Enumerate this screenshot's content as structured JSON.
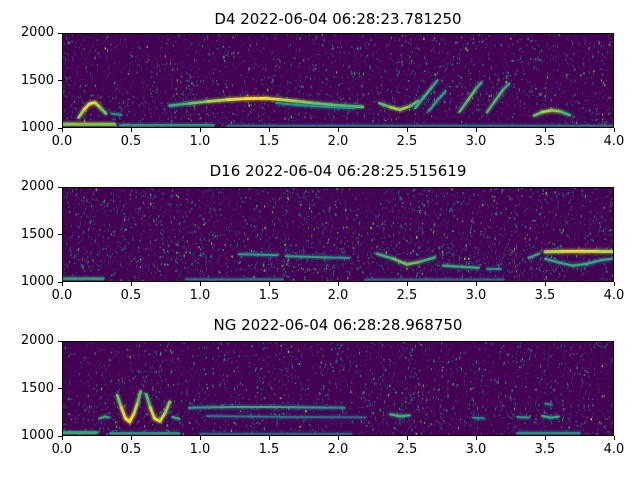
{
  "figure": {
    "background_color": "#ffffff",
    "description": "Three stacked spectrogram subplots",
    "subplot_count": 3
  },
  "chart_data": [
    {
      "type": "heatmap",
      "subtype": "spectrogram",
      "title": "D4 2022-06-04 06:28:23.781250",
      "xlabel": "",
      "ylabel": "",
      "xlim": [
        0.0,
        4.0
      ],
      "ylim": [
        1000,
        2000
      ],
      "xticks": [
        0.0,
        0.5,
        1.0,
        1.5,
        2.0,
        2.5,
        3.0,
        3.5,
        4.0
      ],
      "xtick_labels": [
        "0.0",
        "0.5",
        "1.0",
        "1.5",
        "2.0",
        "2.5",
        "3.0",
        "3.5",
        "4.0"
      ],
      "yticks": [
        2000,
        1500,
        1000
      ],
      "ytick_labels": [
        "2000",
        "1500",
        "1000"
      ],
      "colormap": "viridis",
      "background_color": "#440154",
      "grid": false,
      "noise_seed": 7,
      "noise_count": 3800,
      "noise_band": {
        "f0": 1100,
        "f1": 1380,
        "count": 500
      },
      "noise_palette": [
        {
          "color": "#482475",
          "weight": 0.4,
          "alpha": 0.55
        },
        {
          "color": "#414487",
          "weight": 0.2,
          "alpha": 0.5
        },
        {
          "color": "#2a788e",
          "weight": 0.2,
          "alpha": 0.75
        },
        {
          "color": "#22a884",
          "weight": 0.13,
          "alpha": 0.8
        },
        {
          "color": "#54c568",
          "weight": 0.05,
          "alpha": 0.85
        },
        {
          "color": "#a5db36",
          "weight": 0.02,
          "alpha": 0.9
        }
      ],
      "bands": [
        {
          "t0": 0.0,
          "t1": 0.38,
          "f": 1040,
          "intensity": 0.78,
          "lw": 3.2
        },
        {
          "t0": 0.42,
          "t1": 1.1,
          "f": 1030,
          "intensity": 0.5,
          "lw": 2.4
        },
        {
          "t0": 1.2,
          "t1": 4.0,
          "f": 1024,
          "intensity": 0.34,
          "lw": 2.0
        }
      ],
      "contours": [
        {
          "lw": 2.6,
          "points": [
            [
              0.12,
              1110,
              0.72
            ],
            [
              0.16,
              1195,
              0.9
            ],
            [
              0.2,
              1255,
              1.0
            ],
            [
              0.24,
              1268,
              0.95
            ],
            [
              0.28,
              1210,
              0.8
            ],
            [
              0.32,
              1150,
              0.62
            ]
          ]
        },
        {
          "lw": 2.0,
          "points": [
            [
              0.36,
              1150,
              0.45
            ],
            [
              0.43,
              1138,
              0.4
            ]
          ]
        },
        {
          "lw": 2.6,
          "points": [
            [
              0.78,
              1235,
              0.5
            ],
            [
              0.92,
              1258,
              0.65
            ],
            [
              1.06,
              1280,
              0.78
            ],
            [
              1.2,
              1298,
              0.9
            ],
            [
              1.34,
              1310,
              1.0
            ],
            [
              1.48,
              1312,
              1.0
            ],
            [
              1.58,
              1300,
              0.9
            ],
            [
              1.7,
              1282,
              0.82
            ],
            [
              1.82,
              1262,
              0.75
            ],
            [
              1.94,
              1245,
              0.7
            ],
            [
              2.06,
              1232,
              0.72
            ],
            [
              2.18,
              1222,
              0.65
            ]
          ]
        },
        {
          "lw": 1.9,
          "points": [
            [
              1.55,
              1262,
              0.42
            ],
            [
              1.7,
              1243,
              0.48
            ],
            [
              1.85,
              1228,
              0.46
            ],
            [
              2.0,
              1215,
              0.44
            ],
            [
              2.12,
              1208,
              0.4
            ]
          ]
        },
        {
          "lw": 2.4,
          "points": [
            [
              2.3,
              1262,
              0.6
            ],
            [
              2.38,
              1218,
              0.78
            ],
            [
              2.45,
              1192,
              0.85
            ],
            [
              2.52,
              1228,
              0.75
            ],
            [
              2.58,
              1285,
              0.6
            ]
          ]
        },
        {
          "lw": 2.2,
          "points": [
            [
              2.56,
              1210,
              0.55
            ],
            [
              2.62,
              1320,
              0.65
            ],
            [
              2.68,
              1430,
              0.6
            ],
            [
              2.72,
              1500,
              0.48
            ]
          ]
        },
        {
          "lw": 2.0,
          "points": [
            [
              2.66,
              1180,
              0.48
            ],
            [
              2.72,
              1290,
              0.55
            ],
            [
              2.78,
              1390,
              0.48
            ]
          ]
        },
        {
          "lw": 2.2,
          "points": [
            [
              2.88,
              1170,
              0.6
            ],
            [
              2.94,
              1290,
              0.72
            ],
            [
              3.0,
              1415,
              0.65
            ],
            [
              3.04,
              1480,
              0.5
            ]
          ]
        },
        {
          "lw": 2.2,
          "points": [
            [
              3.08,
              1165,
              0.6
            ],
            [
              3.14,
              1290,
              0.7
            ],
            [
              3.2,
              1410,
              0.62
            ],
            [
              3.24,
              1465,
              0.5
            ]
          ]
        },
        {
          "lw": 2.4,
          "points": [
            [
              3.42,
              1130,
              0.6
            ],
            [
              3.48,
              1168,
              0.82
            ],
            [
              3.55,
              1188,
              0.85
            ],
            [
              3.62,
              1170,
              0.7
            ],
            [
              3.68,
              1135,
              0.55
            ]
          ]
        }
      ]
    },
    {
      "type": "heatmap",
      "subtype": "spectrogram",
      "title": "D16 2022-06-04 06:28:25.515619",
      "xlabel": "",
      "ylabel": "",
      "xlim": [
        0.0,
        4.0
      ],
      "ylim": [
        1000,
        2000
      ],
      "xticks": [
        0.0,
        0.5,
        1.0,
        1.5,
        2.0,
        2.5,
        3.0,
        3.5,
        4.0
      ],
      "xtick_labels": [
        "0.0",
        "0.5",
        "1.0",
        "1.5",
        "2.0",
        "2.5",
        "3.0",
        "3.5",
        "4.0"
      ],
      "yticks": [
        2000,
        1500,
        1000
      ],
      "ytick_labels": [
        "2000",
        "1500",
        "1000"
      ],
      "colormap": "viridis",
      "background_color": "#440154",
      "grid": false,
      "noise_seed": 13,
      "noise_count": 4600,
      "noise_band": {
        "f0": 1120,
        "f1": 1380,
        "count": 800
      },
      "noise_palette": [
        {
          "color": "#482475",
          "weight": 0.4,
          "alpha": 0.55
        },
        {
          "color": "#414487",
          "weight": 0.2,
          "alpha": 0.5
        },
        {
          "color": "#2a788e",
          "weight": 0.2,
          "alpha": 0.75
        },
        {
          "color": "#22a884",
          "weight": 0.13,
          "alpha": 0.8
        },
        {
          "color": "#54c568",
          "weight": 0.05,
          "alpha": 0.85
        },
        {
          "color": "#a5db36",
          "weight": 0.02,
          "alpha": 0.9
        }
      ],
      "bands": [
        {
          "t0": 0.0,
          "t1": 0.3,
          "f": 1035,
          "intensity": 0.55,
          "lw": 2.5
        },
        {
          "t0": 0.9,
          "t1": 1.6,
          "f": 1028,
          "intensity": 0.35,
          "lw": 2.0
        },
        {
          "t0": 2.2,
          "t1": 3.2,
          "f": 1025,
          "intensity": 0.3,
          "lw": 2.0
        }
      ],
      "contours": [
        {
          "lw": 2.0,
          "points": [
            [
              1.28,
              1292,
              0.45
            ],
            [
              1.42,
              1288,
              0.5
            ],
            [
              1.56,
              1282,
              0.48
            ]
          ]
        },
        {
          "lw": 2.0,
          "points": [
            [
              1.62,
              1272,
              0.48
            ],
            [
              1.78,
              1265,
              0.5
            ],
            [
              1.94,
              1258,
              0.48
            ],
            [
              2.08,
              1252,
              0.42
            ]
          ]
        },
        {
          "lw": 2.3,
          "points": [
            [
              2.28,
              1298,
              0.55
            ],
            [
              2.4,
              1245,
              0.68
            ],
            [
              2.5,
              1185,
              0.75
            ],
            [
              2.6,
              1215,
              0.68
            ],
            [
              2.7,
              1258,
              0.55
            ]
          ]
        },
        {
          "lw": 2.2,
          "points": [
            [
              2.76,
              1172,
              0.55
            ],
            [
              2.9,
              1160,
              0.6
            ],
            [
              3.02,
              1150,
              0.52
            ]
          ]
        },
        {
          "lw": 2.0,
          "points": [
            [
              3.08,
              1140,
              0.45
            ],
            [
              3.18,
              1135,
              0.45
            ]
          ]
        },
        {
          "lw": 2.0,
          "points": [
            [
              3.38,
              1255,
              0.5
            ],
            [
              3.46,
              1300,
              0.6
            ]
          ]
        },
        {
          "lw": 2.8,
          "points": [
            [
              3.5,
              1318,
              0.8
            ],
            [
              3.62,
              1322,
              0.9
            ],
            [
              3.76,
              1324,
              0.95
            ],
            [
              3.88,
              1322,
              0.9
            ],
            [
              4.0,
              1320,
              0.85
            ]
          ]
        },
        {
          "lw": 2.1,
          "points": [
            [
              3.5,
              1245,
              0.55
            ],
            [
              3.6,
              1205,
              0.6
            ],
            [
              3.7,
              1172,
              0.55
            ],
            [
              3.8,
              1190,
              0.6
            ],
            [
              3.9,
              1228,
              0.58
            ],
            [
              4.0,
              1248,
              0.5
            ]
          ]
        }
      ]
    },
    {
      "type": "heatmap",
      "subtype": "spectrogram",
      "title": "NG 2022-06-04 06:28:28.968750",
      "xlabel": "",
      "ylabel": "",
      "xlim": [
        0.0,
        4.0
      ],
      "ylim": [
        1000,
        2000
      ],
      "xticks": [
        0.0,
        0.5,
        1.0,
        1.5,
        2.0,
        2.5,
        3.0,
        3.5,
        4.0
      ],
      "xtick_labels": [
        "0.0",
        "0.5",
        "1.0",
        "1.5",
        "2.0",
        "2.5",
        "3.0",
        "3.5",
        "4.0"
      ],
      "yticks": [
        2000,
        1500,
        1000
      ],
      "ytick_labels": [
        "2000",
        "1500",
        "1000"
      ],
      "colormap": "viridis",
      "background_color": "#440154",
      "grid": false,
      "noise_seed": 42,
      "noise_count": 3800,
      "noise_band": {
        "f0": 1120,
        "f1": 1360,
        "count": 500
      },
      "noise_palette": [
        {
          "color": "#482475",
          "weight": 0.4,
          "alpha": 0.55
        },
        {
          "color": "#414487",
          "weight": 0.2,
          "alpha": 0.5
        },
        {
          "color": "#2a788e",
          "weight": 0.2,
          "alpha": 0.75
        },
        {
          "color": "#22a884",
          "weight": 0.13,
          "alpha": 0.8
        },
        {
          "color": "#54c568",
          "weight": 0.05,
          "alpha": 0.85
        },
        {
          "color": "#a5db36",
          "weight": 0.02,
          "alpha": 0.9
        }
      ],
      "bands": [
        {
          "t0": 0.0,
          "t1": 0.25,
          "f": 1035,
          "intensity": 0.6,
          "lw": 3.0
        },
        {
          "t0": 0.35,
          "t1": 0.85,
          "f": 1028,
          "intensity": 0.5,
          "lw": 2.5
        },
        {
          "t0": 1.0,
          "t1": 2.1,
          "f": 1022,
          "intensity": 0.3,
          "lw": 2.0
        },
        {
          "t0": 3.3,
          "t1": 3.75,
          "f": 1030,
          "intensity": 0.45,
          "lw": 2.5
        }
      ],
      "contours": [
        {
          "lw": 2.0,
          "points": [
            [
              0.27,
              1185,
              0.55
            ],
            [
              0.31,
              1205,
              0.6
            ],
            [
              0.34,
              1195,
              0.5
            ]
          ]
        },
        {
          "lw": 2.6,
          "points": [
            [
              0.4,
              1430,
              0.6
            ],
            [
              0.43,
              1300,
              0.85
            ],
            [
              0.46,
              1185,
              1.0
            ],
            [
              0.49,
              1150,
              1.0
            ],
            [
              0.52,
              1230,
              0.95
            ],
            [
              0.55,
              1360,
              0.8
            ],
            [
              0.57,
              1470,
              0.6
            ]
          ]
        },
        {
          "lw": 2.6,
          "points": [
            [
              0.61,
              1440,
              0.55
            ],
            [
              0.64,
              1300,
              0.8
            ],
            [
              0.67,
              1185,
              1.0
            ],
            [
              0.71,
              1155,
              0.95
            ],
            [
              0.75,
              1250,
              0.85
            ],
            [
              0.78,
              1360,
              0.7
            ]
          ]
        },
        {
          "lw": 2.0,
          "points": [
            [
              0.8,
              1200,
              0.6
            ],
            [
              0.85,
              1180,
              0.55
            ]
          ]
        },
        {
          "lw": 2.0,
          "points": [
            [
              0.92,
              1298,
              0.45
            ],
            [
              1.1,
              1303,
              0.5
            ],
            [
              1.3,
              1305,
              0.55
            ],
            [
              1.5,
              1305,
              0.55
            ],
            [
              1.7,
              1302,
              0.5
            ],
            [
              1.9,
              1299,
              0.45
            ],
            [
              2.05,
              1297,
              0.4
            ]
          ]
        },
        {
          "lw": 1.8,
          "points": [
            [
              1.05,
              1210,
              0.32
            ],
            [
              1.35,
              1205,
              0.35
            ],
            [
              1.65,
              1200,
              0.33
            ],
            [
              1.95,
              1198,
              0.3
            ],
            [
              2.2,
              1196,
              0.28
            ]
          ]
        },
        {
          "lw": 2.2,
          "points": [
            [
              2.38,
              1228,
              0.55
            ],
            [
              2.45,
              1208,
              0.68
            ],
            [
              2.52,
              1218,
              0.55
            ]
          ]
        },
        {
          "lw": 1.9,
          "points": [
            [
              2.98,
              1192,
              0.42
            ],
            [
              3.06,
              1186,
              0.42
            ]
          ]
        },
        {
          "lw": 2.0,
          "points": [
            [
              3.3,
              1200,
              0.48
            ],
            [
              3.38,
              1194,
              0.5
            ]
          ]
        },
        {
          "lw": 2.1,
          "points": [
            [
              3.48,
              1212,
              0.55
            ],
            [
              3.54,
              1192,
              0.6
            ],
            [
              3.6,
              1205,
              0.5
            ]
          ]
        },
        {
          "lw": 1.8,
          "points": [
            [
              3.5,
              1340,
              0.4
            ],
            [
              3.55,
              1330,
              0.4
            ]
          ]
        }
      ]
    }
  ]
}
